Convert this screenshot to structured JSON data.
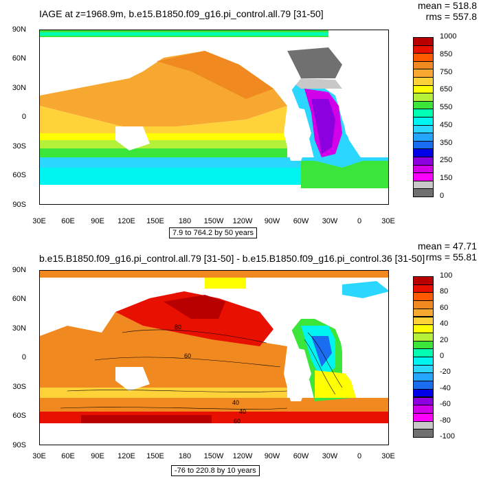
{
  "panels": [
    {
      "title": "IAGE at z=1968.9m, b.e15.B1850.f09_g16.pi_control.all.79 [31-50]",
      "mean": "mean = 518.8",
      "rms": "rms = 557.8",
      "range_note": "7.9 to 764.2 by 50 years",
      "colorbar_labels": [
        "1000",
        "850",
        "750",
        "650",
        "550",
        "450",
        "350",
        "250",
        "150",
        "0"
      ],
      "colorbar_colors": [
        "#b80000",
        "#e81000",
        "#ff5a00",
        "#f08a20",
        "#f7a830",
        "#ffd23a",
        "#ffff00",
        "#b5f03a",
        "#3ce53a",
        "#00ffb2",
        "#00f5f0",
        "#2bd7ff",
        "#24a6ff",
        "#1a6cf0",
        "#0000e8",
        "#8c00e0",
        "#d200e8",
        "#ff00ff",
        "#c8c8c8",
        "#707070"
      ]
    },
    {
      "title": "b.e15.B1850.f09_g16.pi_control.all.79 [31-50] - b.e15.B1850.f09_g16.pi_control.36 [31-50]",
      "mean": "mean = 47.71",
      "rms": "rms = 55.81",
      "range_note": "-76 to 220.8 by 10 years",
      "colorbar_labels": [
        "100",
        "80",
        "60",
        "40",
        "20",
        "0",
        "-20",
        "-40",
        "-60",
        "-80",
        "-100"
      ],
      "colorbar_colors": [
        "#b80000",
        "#e81000",
        "#ff5a00",
        "#f08a20",
        "#f7a830",
        "#ffd23a",
        "#ffff00",
        "#b5f03a",
        "#3ce53a",
        "#00ffb2",
        "#00f5f0",
        "#2bd7ff",
        "#24a6ff",
        "#1a6cf0",
        "#0000e8",
        "#8c00e0",
        "#d200e8",
        "#ff00ff",
        "#c8c8c8",
        "#707070"
      ],
      "contour_labels": [
        "80",
        "60",
        "40",
        "40",
        "60"
      ]
    }
  ],
  "lat_labels": [
    "90N",
    "60N",
    "30N",
    "0",
    "30S",
    "60S",
    "90S"
  ],
  "lon_labels": [
    "30E",
    "60E",
    "90E",
    "120E",
    "150E",
    "180",
    "150W",
    "120W",
    "90W",
    "60W",
    "30W",
    "0",
    "30E"
  ]
}
